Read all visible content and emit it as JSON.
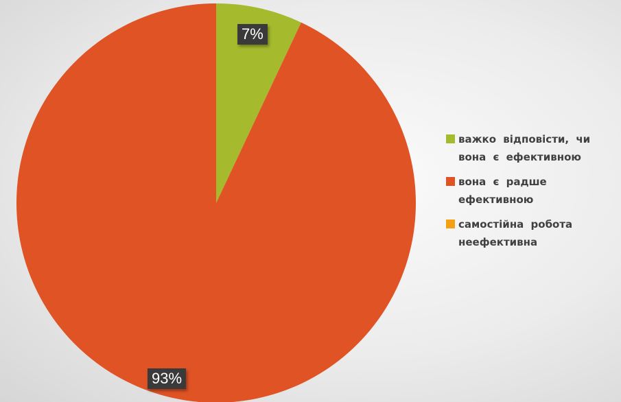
{
  "chart_data": {
    "type": "pie",
    "title": "",
    "slices": [
      {
        "label": "важко відповісти, чи вона є ефективною",
        "value": 7,
        "display": "7%",
        "color": "#a5bb2d"
      },
      {
        "label": "вона є радше ефективною",
        "value": 93,
        "display": "93%",
        "color": "#e05325"
      },
      {
        "label": "самостійна робота неефективна",
        "value": 0,
        "display": "",
        "color": "#f5a012"
      }
    ],
    "legend_position": "right"
  },
  "legend": {
    "items": [
      {
        "label": "важко відповісти, чи вона є ефективною",
        "color": "#a5bb2d"
      },
      {
        "label": "вона є радше ефективною",
        "color": "#e05325"
      },
      {
        "label": "самостійна робота неефективна",
        "color": "#f5a012"
      }
    ]
  }
}
